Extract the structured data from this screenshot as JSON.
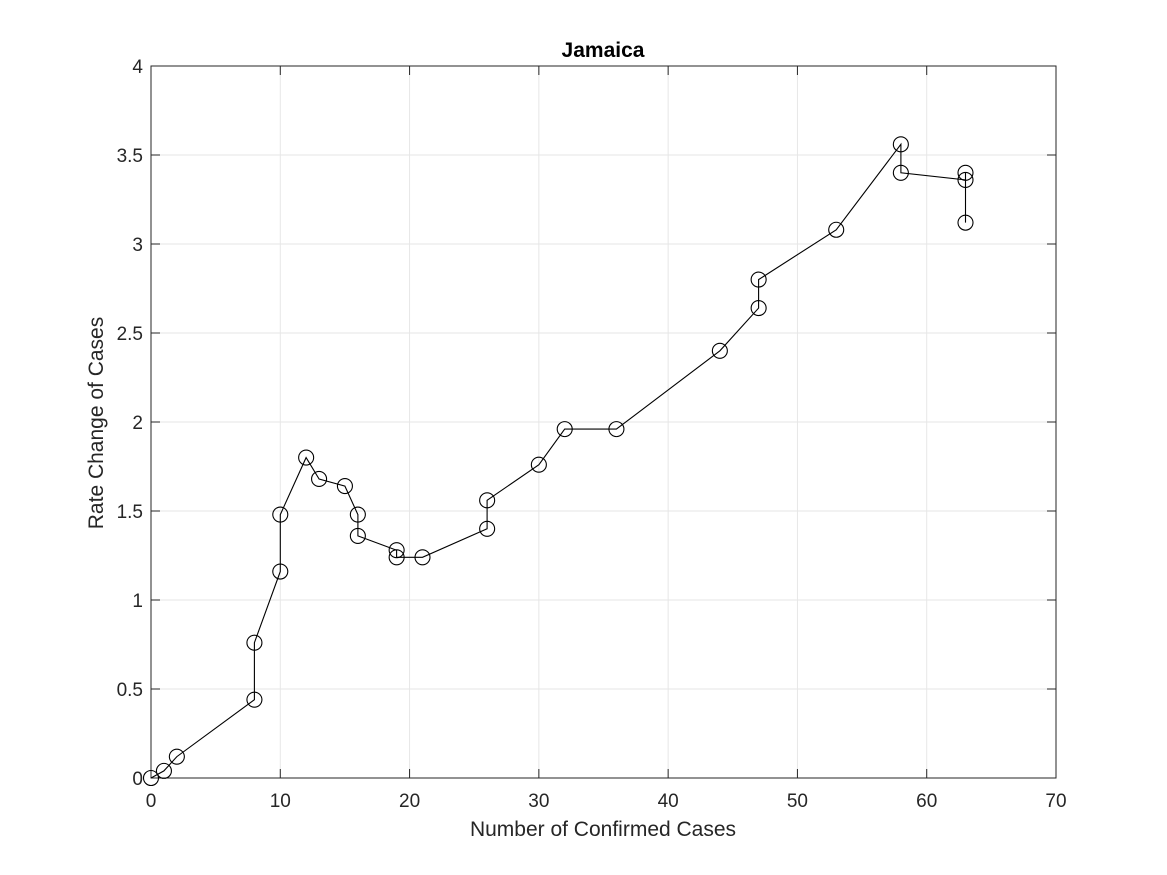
{
  "chart_data": {
    "type": "line",
    "title": "Jamaica",
    "xlabel": "Number of Confirmed Cases",
    "ylabel": "Rate Change of Cases",
    "xlim": [
      0,
      70
    ],
    "ylim": [
      0,
      4
    ],
    "xticks": [
      0,
      10,
      20,
      30,
      40,
      50,
      60,
      70
    ],
    "xtick_labels": [
      "0",
      "10",
      "20",
      "30",
      "40",
      "50",
      "60",
      "70"
    ],
    "yticks": [
      0,
      0.5,
      1,
      1.5,
      2,
      2.5,
      3,
      3.5,
      4
    ],
    "ytick_labels": [
      "0",
      "0.5",
      "1",
      "1.5",
      "2",
      "2.5",
      "3",
      "3.5",
      "4"
    ],
    "grid": true,
    "marker": "circle",
    "line_color": "#000000",
    "grid_color": "#e6e6e6",
    "axis_color": "#262626",
    "series": [
      {
        "x": [
          0,
          1,
          2,
          8,
          8,
          10,
          10,
          12,
          13,
          15,
          16,
          16,
          19,
          19,
          21,
          26,
          26,
          30,
          32,
          36,
          44,
          47,
          47,
          53,
          58,
          58,
          63,
          63,
          63
        ],
        "y": [
          0,
          0.04,
          0.12,
          0.44,
          0.76,
          1.16,
          1.48,
          1.8,
          1.68,
          1.64,
          1.48,
          1.36,
          1.28,
          1.24,
          1.24,
          1.4,
          1.56,
          1.76,
          1.96,
          1.96,
          2.4,
          2.64,
          2.8,
          3.08,
          3.56,
          3.4,
          3.36,
          3.4,
          3.12
        ]
      }
    ]
  }
}
